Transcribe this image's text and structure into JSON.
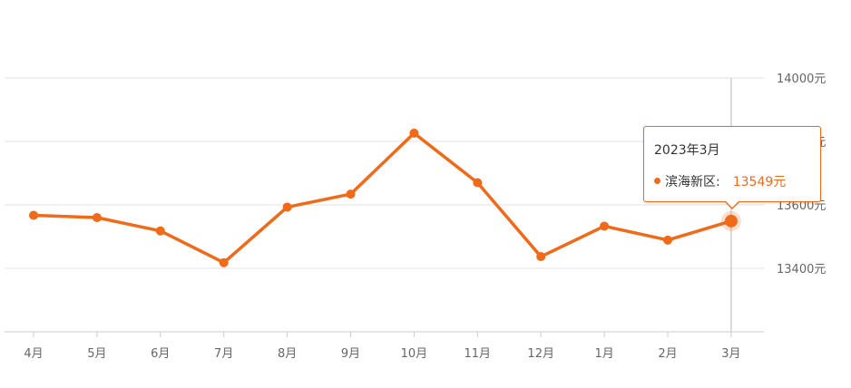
{
  "chart_data": {
    "type": "line",
    "categories": [
      "4月",
      "5月",
      "6月",
      "7月",
      "8月",
      "9月",
      "10月",
      "11月",
      "12月",
      "1月",
      "2月",
      "3月"
    ],
    "series": [
      {
        "name": "滨海新区",
        "values": [
          13567,
          13560,
          13518,
          13418,
          13593,
          13634,
          13826,
          13670,
          13437,
          13533,
          13489,
          13549
        ]
      }
    ],
    "y_ticks": [
      "14000元",
      "13800元",
      "13600元",
      "13400元"
    ],
    "y_tick_values": [
      14000,
      13800,
      13600,
      13400
    ],
    "ylim": [
      13200,
      14000
    ],
    "grid": true,
    "line_color": "#f06a1a",
    "axis_position": "right"
  },
  "tooltip": {
    "title": "2023年3月",
    "series_label": "滨海新区:",
    "value": "13549元",
    "category_index": 11
  }
}
